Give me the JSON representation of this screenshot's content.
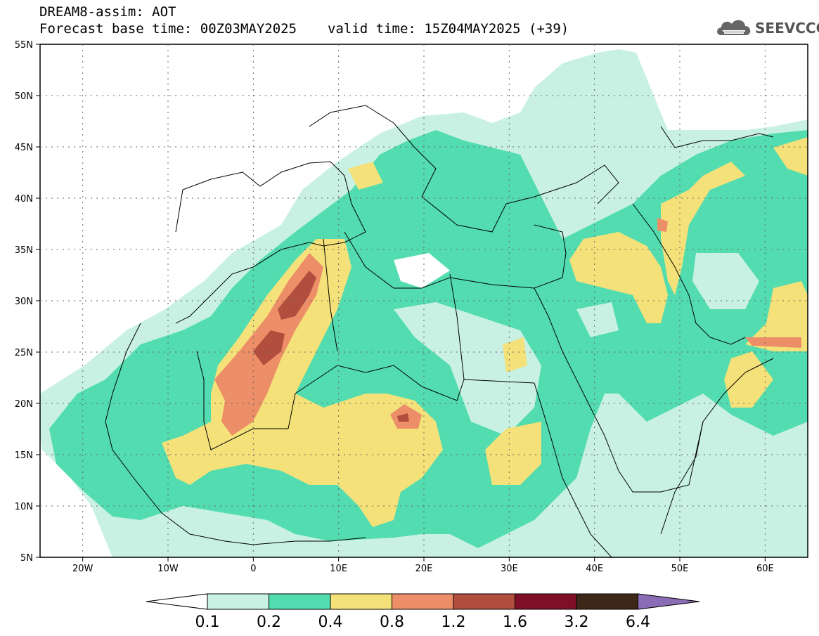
{
  "title": {
    "line1": "DREAM8-assim: AOT",
    "line2_base": "Forecast base time: 00Z03MAY2025",
    "line2_valid": "valid time: 15Z04MAY2025 (+39)"
  },
  "logo": {
    "text": "SEEVCCC",
    "icon": "cloud-icon"
  },
  "axes": {
    "lat_ticks": [
      "55N",
      "50N",
      "45N",
      "40N",
      "35N",
      "30N",
      "25N",
      "20N",
      "15N",
      "10N",
      "5N"
    ],
    "lon_ticks": [
      "20W",
      "10W",
      "0",
      "10E",
      "20E",
      "30E",
      "40E",
      "50E",
      "60E"
    ],
    "lat_range": [
      5,
      55
    ],
    "lon_range": [
      -25,
      65
    ]
  },
  "colorbar": {
    "labels": [
      "0.1",
      "0.2",
      "0.4",
      "0.8",
      "1.2",
      "1.6",
      "3.2",
      "6.4"
    ],
    "colors": [
      "#c8f1e4",
      "#52dcb0",
      "#f5e179",
      "#ec8e67",
      "#b14e3e",
      "#7e0f27",
      "#3d2718",
      "#8a6db5"
    ]
  }
}
